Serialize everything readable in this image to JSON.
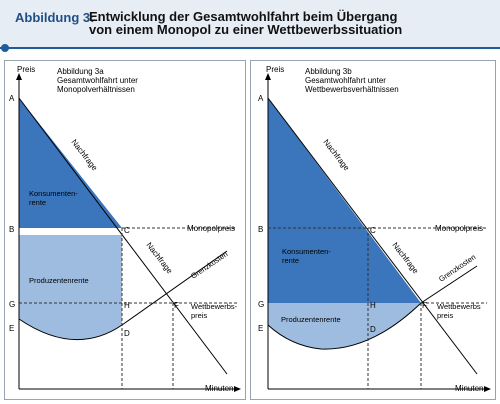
{
  "figure": {
    "label": "Abbildung 3:",
    "title_line1": "Entwicklung der Gesamtwohlfahrt beim Übergang",
    "title_line2": "von einem Monopol zu einer Wettbewerbssituation"
  },
  "colors": {
    "accent": "#1f5c99",
    "consumer_dark": "#3b76bd",
    "producer_light": "#9ebcdf",
    "header_bg": "#e6edf5"
  },
  "panel_a": {
    "y_axis_label": "Preis",
    "x_axis_label": "Minuten",
    "caption_line1": "Abbildung 3a",
    "caption_line2": "Gesamtwohlfahrt unter",
    "caption_line3": "Monopolverhältnissen",
    "point_A": "A",
    "point_B": "B",
    "point_C": "C",
    "point_D": "D",
    "point_E": "E",
    "point_F": "F",
    "point_G": "G",
    "point_H": "H",
    "demand_label_upper": "Nachfrage",
    "demand_label_lower": "Nachfrage",
    "consumer_rent_line1": "Konsumenten-",
    "consumer_rent_line2": "rente",
    "producer_rent": "Produzentenrente",
    "monopoly_price": "Monopolpreis",
    "marginal_cost": "Grenzkosten",
    "competitive_price_line1": "Wettbewerbs-",
    "competitive_price_line2": "preis"
  },
  "panel_b": {
    "y_axis_label": "Preis",
    "x_axis_label": "Minuten",
    "caption_line1": "Abbildung 3b",
    "caption_line2": "Gesamtwohlfahrt unter",
    "caption_line3": "Wettbewerbsverhältnissen",
    "point_A": "A",
    "point_B": "B",
    "point_C": "C",
    "point_D": "D",
    "point_E": "E",
    "point_F": "F",
    "point_G": "G",
    "point_H": "H",
    "demand_label_upper": "Nachfrage",
    "demand_label_lower": "Nachfrage",
    "consumer_rent_line1": "Konsumenten-",
    "consumer_rent_line2": "rente",
    "producer_rent": "Produzentenrente",
    "monopoly_price": "Monopolpreis",
    "marginal_cost": "Grenzkosten",
    "competitive_price_line1": "Wettbewerbs",
    "competitive_price_line2": "preis"
  }
}
